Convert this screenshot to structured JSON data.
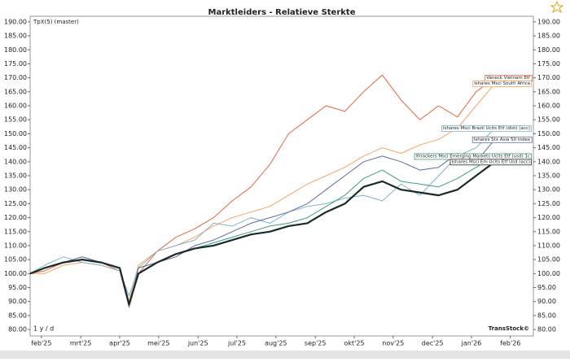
{
  "chart_data": {
    "type": "line",
    "title": "Marktleiders - Relatieve Sterkte",
    "indicator": "TpX(5) (master)",
    "period": "1 y / d",
    "brand": "TransStock©",
    "x": [
      2025.059,
      2025.09,
      2025.13,
      2025.17,
      2025.21,
      2025.25,
      2025.27,
      2025.29,
      2025.33,
      2025.37,
      2025.41,
      2025.45,
      2025.49,
      2025.53,
      2025.57,
      2025.61,
      2025.65,
      2025.69,
      2025.73,
      2025.77,
      2025.81,
      2025.85,
      2025.89,
      2025.93,
      2025.97,
      2026.01,
      2026.05
    ],
    "xlim": [
      2025.059,
      2026.132
    ],
    "xticks": [
      {
        "value": 2025.083,
        "label": "feb'25"
      },
      {
        "value": 2025.167,
        "label": "mrt'25"
      },
      {
        "value": 2025.25,
        "label": "apr'25"
      },
      {
        "value": 2025.333,
        "label": "mei'25"
      },
      {
        "value": 2025.417,
        "label": "jun'25"
      },
      {
        "value": 2025.5,
        "label": "jul'25"
      },
      {
        "value": 2025.583,
        "label": "aug'25"
      },
      {
        "value": 2025.667,
        "label": "sep'25"
      },
      {
        "value": 2025.75,
        "label": "okt'25"
      },
      {
        "value": 2025.833,
        "label": "nov'25"
      },
      {
        "value": 2025.917,
        "label": "dec'25"
      },
      {
        "value": 2026.0,
        "label": "jan'26"
      },
      {
        "value": 2026.083,
        "label": "feb'26"
      }
    ],
    "ylim": [
      77.7,
      192.0
    ],
    "yticks": [
      {
        "value": 80,
        "label": "80.00"
      },
      {
        "value": 85,
        "label": "85.00"
      },
      {
        "value": 90,
        "label": "90.00"
      },
      {
        "value": 95,
        "label": "95.00"
      },
      {
        "value": 100,
        "label": "100.00"
      },
      {
        "value": 105,
        "label": "105.00"
      },
      {
        "value": 110,
        "label": "110.00"
      },
      {
        "value": 115,
        "label": "115.00"
      },
      {
        "value": 120,
        "label": "120.00"
      },
      {
        "value": 125,
        "label": "125.00"
      },
      {
        "value": 130,
        "label": "130.00"
      },
      {
        "value": 135,
        "label": "135.00"
      },
      {
        "value": 140,
        "label": "140.00"
      },
      {
        "value": 145,
        "label": "145.00"
      },
      {
        "value": 150,
        "label": "150.00"
      },
      {
        "value": 155,
        "label": "155.00"
      },
      {
        "value": 160,
        "label": "160.00"
      },
      {
        "value": 165,
        "label": "165.00"
      },
      {
        "value": 170,
        "label": "170.00"
      },
      {
        "value": 175,
        "label": "175.00"
      },
      {
        "value": 180,
        "label": "180.00"
      },
      {
        "value": 185,
        "label": "185.00"
      },
      {
        "value": 190,
        "label": "190.00"
      }
    ],
    "grid": false,
    "series": [
      {
        "name": "Vaneck Vietnam Etf",
        "color": "#e8643c",
        "values": [
          100,
          101,
          104,
          106,
          104,
          101,
          88,
          100,
          108,
          113,
          116,
          120,
          126,
          131,
          139,
          150,
          155,
          160,
          158,
          165,
          171,
          162,
          155,
          160,
          156,
          165,
          170
        ]
      },
      {
        "name": "Ishares Msci South Africa",
        "color": "#f5a560",
        "values": [
          100,
          100,
          103,
          104,
          103,
          101,
          90,
          103,
          108,
          110,
          113,
          117,
          120,
          122,
          124,
          128,
          132,
          135,
          138,
          142,
          145,
          143,
          146,
          148,
          152,
          160,
          168
        ]
      },
      {
        "name": "Ishares Msci Brazil Ucits Etf (dist) (acc)",
        "color": "#7fb3cb",
        "values": [
          100,
          103,
          106,
          104,
          103,
          101,
          92,
          102,
          108,
          110,
          112,
          118,
          117,
          120,
          118,
          122,
          124,
          125,
          127,
          128,
          126,
          132,
          128,
          135,
          142,
          145,
          152
        ]
      },
      {
        "name": "Ishares Stx Asia 50 Index",
        "color": "#5c6c9c",
        "values": [
          100,
          102,
          104,
          106,
          104,
          102,
          88,
          102,
          104,
          106,
          110,
          112,
          115,
          118,
          120,
          122,
          125,
          130,
          135,
          140,
          142,
          140,
          137,
          138,
          143,
          140,
          148
        ]
      },
      {
        "name": "Xtrackers Msci Emerging Markets Ucits Etf (usd) 1c",
        "color": "#3e9c7c",
        "values": [
          100,
          102,
          104,
          105,
          104,
          102,
          89,
          100,
          104,
          107,
          109,
          111,
          113,
          115,
          117,
          118,
          120,
          124,
          128,
          134,
          137,
          133,
          132,
          131,
          134,
          138,
          142
        ]
      },
      {
        "name": "Ishares Msci Em Ucits Etf Usd (acc)",
        "color": "#1a2a2a",
        "values": [
          100,
          102,
          104,
          105,
          104,
          102,
          89,
          100,
          104,
          107,
          109,
          110,
          112,
          114,
          115,
          117,
          118,
          122,
          125,
          131,
          133,
          130,
          129,
          128,
          130,
          135,
          140
        ]
      }
    ]
  }
}
